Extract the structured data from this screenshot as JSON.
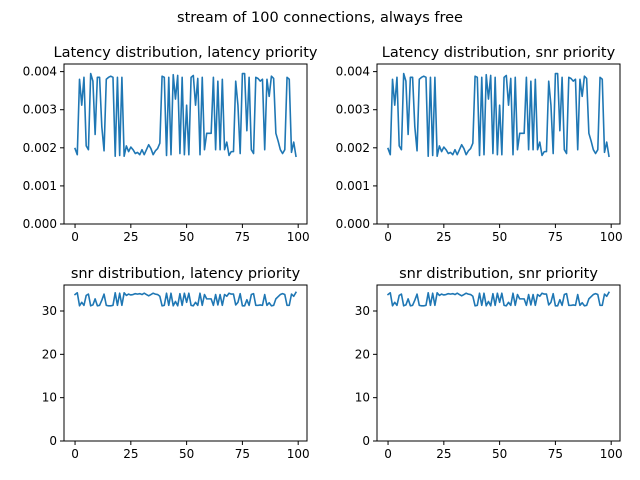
{
  "figure": {
    "suptitle": "stream of 100 connections, always free"
  },
  "colors": {
    "series": "#1f77b4"
  },
  "chart_data": [
    {
      "type": "line",
      "title": "Latency distribution, latency priority",
      "xlabel": "",
      "ylabel": "",
      "xlim": [
        -4.95,
        103.95
      ],
      "ylim": [
        0,
        0.0042
      ],
      "xticks": [
        0,
        25,
        50,
        75,
        100
      ],
      "yticks": [
        0,
        0.001,
        0.002,
        0.003,
        0.004
      ],
      "ytick_labels": [
        "0.000",
        "0.001",
        "0.002",
        "0.003",
        "0.004"
      ],
      "grid": false,
      "x": [
        0,
        1,
        2,
        3,
        4,
        5,
        6,
        7,
        8,
        9,
        10,
        11,
        12,
        13,
        14,
        15,
        16,
        17,
        18,
        19,
        20,
        21,
        22,
        23,
        24,
        25,
        26,
        27,
        28,
        29,
        30,
        31,
        32,
        33,
        34,
        35,
        36,
        37,
        38,
        39,
        40,
        41,
        42,
        43,
        44,
        45,
        46,
        47,
        48,
        49,
        50,
        51,
        52,
        53,
        54,
        55,
        56,
        57,
        58,
        59,
        60,
        61,
        62,
        63,
        64,
        65,
        66,
        67,
        68,
        69,
        70,
        71,
        72,
        73,
        74,
        75,
        76,
        77,
        78,
        79,
        80,
        81,
        82,
        83,
        84,
        85,
        86,
        87,
        88,
        89,
        90,
        91,
        92,
        93,
        94,
        95,
        96,
        97,
        98,
        99
      ],
      "series": [
        {
          "values": [
            0.00198,
            0.00182,
            0.0038,
            0.00312,
            0.00385,
            0.00205,
            0.00195,
            0.00395,
            0.00375,
            0.00235,
            0.00385,
            0.00385,
            0.00255,
            0.00192,
            0.0038,
            0.00385,
            0.00388,
            0.00385,
            0.00178,
            0.00385,
            0.0018,
            0.00385,
            0.00178,
            0.00205,
            0.0019,
            0.00202,
            0.00195,
            0.00185,
            0.00188,
            0.00182,
            0.00195,
            0.00182,
            0.00195,
            0.00208,
            0.00198,
            0.00182,
            0.00192,
            0.00198,
            0.00212,
            0.00388,
            0.00385,
            0.0018,
            0.00385,
            0.00182,
            0.00392,
            0.00328,
            0.0039,
            0.00185,
            0.00385,
            0.00182,
            0.00312,
            0.00182,
            0.00385,
            0.0039,
            0.00312,
            0.00382,
            0.00182,
            0.00385,
            0.00195,
            0.00238,
            0.00238,
            0.00238,
            0.00385,
            0.00195,
            0.00375,
            0.00195,
            0.0038,
            0.00195,
            0.00215,
            0.0018,
            0.0019,
            0.0019,
            0.00375,
            0.00312,
            0.00185,
            0.00395,
            0.00395,
            0.00245,
            0.00385,
            0.00195,
            0.00185,
            0.00385,
            0.00382,
            0.00375,
            0.0038,
            0.00195,
            0.0038,
            0.00335,
            0.00388,
            0.00382,
            0.00238,
            0.00218,
            0.00195,
            0.00185,
            0.00195,
            0.00385,
            0.0038,
            0.00188,
            0.00215,
            0.00178
          ]
        }
      ]
    },
    {
      "type": "line",
      "title": "Latency distribution, snr priority",
      "xlabel": "",
      "ylabel": "",
      "xlim": [
        -4.95,
        103.95
      ],
      "ylim": [
        0,
        0.0042
      ],
      "xticks": [
        0,
        25,
        50,
        75,
        100
      ],
      "yticks": [
        0,
        0.001,
        0.002,
        0.003,
        0.004
      ],
      "ytick_labels": [
        "0.000",
        "0.001",
        "0.002",
        "0.003",
        "0.004"
      ],
      "grid": false,
      "x": [
        0,
        1,
        2,
        3,
        4,
        5,
        6,
        7,
        8,
        9,
        10,
        11,
        12,
        13,
        14,
        15,
        16,
        17,
        18,
        19,
        20,
        21,
        22,
        23,
        24,
        25,
        26,
        27,
        28,
        29,
        30,
        31,
        32,
        33,
        34,
        35,
        36,
        37,
        38,
        39,
        40,
        41,
        42,
        43,
        44,
        45,
        46,
        47,
        48,
        49,
        50,
        51,
        52,
        53,
        54,
        55,
        56,
        57,
        58,
        59,
        60,
        61,
        62,
        63,
        64,
        65,
        66,
        67,
        68,
        69,
        70,
        71,
        72,
        73,
        74,
        75,
        76,
        77,
        78,
        79,
        80,
        81,
        82,
        83,
        84,
        85,
        86,
        87,
        88,
        89,
        90,
        91,
        92,
        93,
        94,
        95,
        96,
        97,
        98,
        99
      ],
      "series": [
        {
          "values": [
            0.00198,
            0.00182,
            0.0038,
            0.00312,
            0.00385,
            0.00205,
            0.00195,
            0.00395,
            0.00375,
            0.00235,
            0.00385,
            0.00385,
            0.00255,
            0.00192,
            0.0038,
            0.00385,
            0.00388,
            0.00385,
            0.00178,
            0.00385,
            0.0018,
            0.00385,
            0.00178,
            0.00205,
            0.0019,
            0.00202,
            0.00195,
            0.00185,
            0.00188,
            0.00182,
            0.00195,
            0.00182,
            0.00195,
            0.00208,
            0.00198,
            0.00182,
            0.00192,
            0.00198,
            0.00212,
            0.00388,
            0.00385,
            0.0018,
            0.00385,
            0.00182,
            0.00392,
            0.00328,
            0.0039,
            0.00185,
            0.00385,
            0.00182,
            0.00312,
            0.00182,
            0.00385,
            0.0039,
            0.00312,
            0.00382,
            0.00182,
            0.00385,
            0.00195,
            0.00238,
            0.00238,
            0.00238,
            0.00385,
            0.00195,
            0.00375,
            0.00195,
            0.0038,
            0.00195,
            0.00215,
            0.0018,
            0.0019,
            0.0019,
            0.00375,
            0.00312,
            0.00185,
            0.00395,
            0.00395,
            0.00245,
            0.00385,
            0.00195,
            0.00185,
            0.00385,
            0.00382,
            0.00375,
            0.0038,
            0.00195,
            0.0038,
            0.00335,
            0.00388,
            0.00382,
            0.00238,
            0.00218,
            0.00195,
            0.00185,
            0.00195,
            0.00385,
            0.0038,
            0.00188,
            0.00215,
            0.00178
          ]
        }
      ]
    },
    {
      "type": "line",
      "title": "snr distribution, latency priority",
      "xlabel": "",
      "ylabel": "",
      "xlim": [
        -4.95,
        103.95
      ],
      "ylim": [
        0,
        36
      ],
      "xticks": [
        0,
        25,
        50,
        75,
        100
      ],
      "yticks": [
        0,
        10,
        20,
        30
      ],
      "ytick_labels": [
        "0",
        "10",
        "20",
        "30"
      ],
      "grid": false,
      "x": [
        0,
        1,
        2,
        3,
        4,
        5,
        6,
        7,
        8,
        9,
        10,
        11,
        12,
        13,
        14,
        15,
        16,
        17,
        18,
        19,
        20,
        21,
        22,
        23,
        24,
        25,
        26,
        27,
        28,
        29,
        30,
        31,
        32,
        33,
        34,
        35,
        36,
        37,
        38,
        39,
        40,
        41,
        42,
        43,
        44,
        45,
        46,
        47,
        48,
        49,
        50,
        51,
        52,
        53,
        54,
        55,
        56,
        57,
        58,
        59,
        60,
        61,
        62,
        63,
        64,
        65,
        66,
        67,
        68,
        69,
        70,
        71,
        72,
        73,
        74,
        75,
        76,
        77,
        78,
        79,
        80,
        81,
        82,
        83,
        84,
        85,
        86,
        87,
        88,
        89,
        90,
        91,
        92,
        93,
        94,
        95,
        96,
        97,
        98,
        99
      ],
      "series": [
        {
          "values": [
            33.8,
            34.2,
            31.2,
            32.0,
            31.3,
            33.6,
            33.9,
            31.2,
            31.4,
            32.8,
            31.2,
            31.3,
            32.5,
            33.9,
            31.3,
            31.2,
            31.2,
            31.3,
            34.2,
            31.3,
            34.1,
            31.3,
            34.2,
            33.6,
            33.9,
            33.7,
            33.8,
            34.0,
            33.9,
            34.0,
            33.8,
            34.1,
            33.8,
            33.5,
            33.8,
            34.1,
            33.9,
            33.8,
            33.4,
            31.2,
            31.3,
            34.1,
            31.3,
            34.1,
            31.2,
            32.2,
            31.2,
            34.0,
            31.3,
            34.1,
            32.0,
            34.1,
            31.3,
            31.2,
            32.0,
            31.3,
            34.1,
            31.3,
            33.8,
            32.8,
            32.8,
            32.8,
            31.3,
            33.8,
            31.4,
            33.8,
            31.3,
            33.8,
            33.4,
            34.1,
            33.9,
            33.9,
            31.4,
            32.0,
            34.0,
            31.2,
            31.2,
            32.6,
            31.3,
            33.8,
            34.0,
            31.3,
            31.3,
            31.4,
            31.3,
            33.8,
            31.3,
            31.9,
            31.2,
            31.3,
            32.8,
            33.3,
            33.8,
            34.0,
            33.8,
            31.3,
            31.3,
            33.9,
            33.4,
            34.3
          ]
        }
      ]
    },
    {
      "type": "line",
      "title": "snr distribution, snr priority",
      "xlabel": "",
      "ylabel": "",
      "xlim": [
        -4.95,
        103.95
      ],
      "ylim": [
        0,
        36
      ],
      "xticks": [
        0,
        25,
        50,
        75,
        100
      ],
      "yticks": [
        0,
        10,
        20,
        30
      ],
      "ytick_labels": [
        "0",
        "10",
        "20",
        "30"
      ],
      "grid": false,
      "x": [
        0,
        1,
        2,
        3,
        4,
        5,
        6,
        7,
        8,
        9,
        10,
        11,
        12,
        13,
        14,
        15,
        16,
        17,
        18,
        19,
        20,
        21,
        22,
        23,
        24,
        25,
        26,
        27,
        28,
        29,
        30,
        31,
        32,
        33,
        34,
        35,
        36,
        37,
        38,
        39,
        40,
        41,
        42,
        43,
        44,
        45,
        46,
        47,
        48,
        49,
        50,
        51,
        52,
        53,
        54,
        55,
        56,
        57,
        58,
        59,
        60,
        61,
        62,
        63,
        64,
        65,
        66,
        67,
        68,
        69,
        70,
        71,
        72,
        73,
        74,
        75,
        76,
        77,
        78,
        79,
        80,
        81,
        82,
        83,
        84,
        85,
        86,
        87,
        88,
        89,
        90,
        91,
        92,
        93,
        94,
        95,
        96,
        97,
        98,
        99
      ],
      "series": [
        {
          "values": [
            33.8,
            34.2,
            31.2,
            32.0,
            31.3,
            33.6,
            33.9,
            31.2,
            31.4,
            32.8,
            31.2,
            31.3,
            32.5,
            33.9,
            31.3,
            31.2,
            31.2,
            31.3,
            34.2,
            31.3,
            34.1,
            31.3,
            34.2,
            33.6,
            33.9,
            33.7,
            33.8,
            34.0,
            33.9,
            34.0,
            33.8,
            34.1,
            33.8,
            33.5,
            33.8,
            34.1,
            33.9,
            33.8,
            33.4,
            31.2,
            31.3,
            34.1,
            31.3,
            34.1,
            31.2,
            32.2,
            31.2,
            34.0,
            31.3,
            34.1,
            32.0,
            34.1,
            31.3,
            31.2,
            32.0,
            31.3,
            34.1,
            31.3,
            33.8,
            32.8,
            32.8,
            32.8,
            31.3,
            33.8,
            31.4,
            33.8,
            31.3,
            33.8,
            33.4,
            34.1,
            33.9,
            33.9,
            31.4,
            32.0,
            34.0,
            31.2,
            31.2,
            32.6,
            31.3,
            33.8,
            34.0,
            31.3,
            31.3,
            31.4,
            31.3,
            33.8,
            31.3,
            31.9,
            31.2,
            31.3,
            32.8,
            33.3,
            33.8,
            34.0,
            33.8,
            31.3,
            31.3,
            33.9,
            33.4,
            34.3
          ]
        }
      ]
    }
  ]
}
